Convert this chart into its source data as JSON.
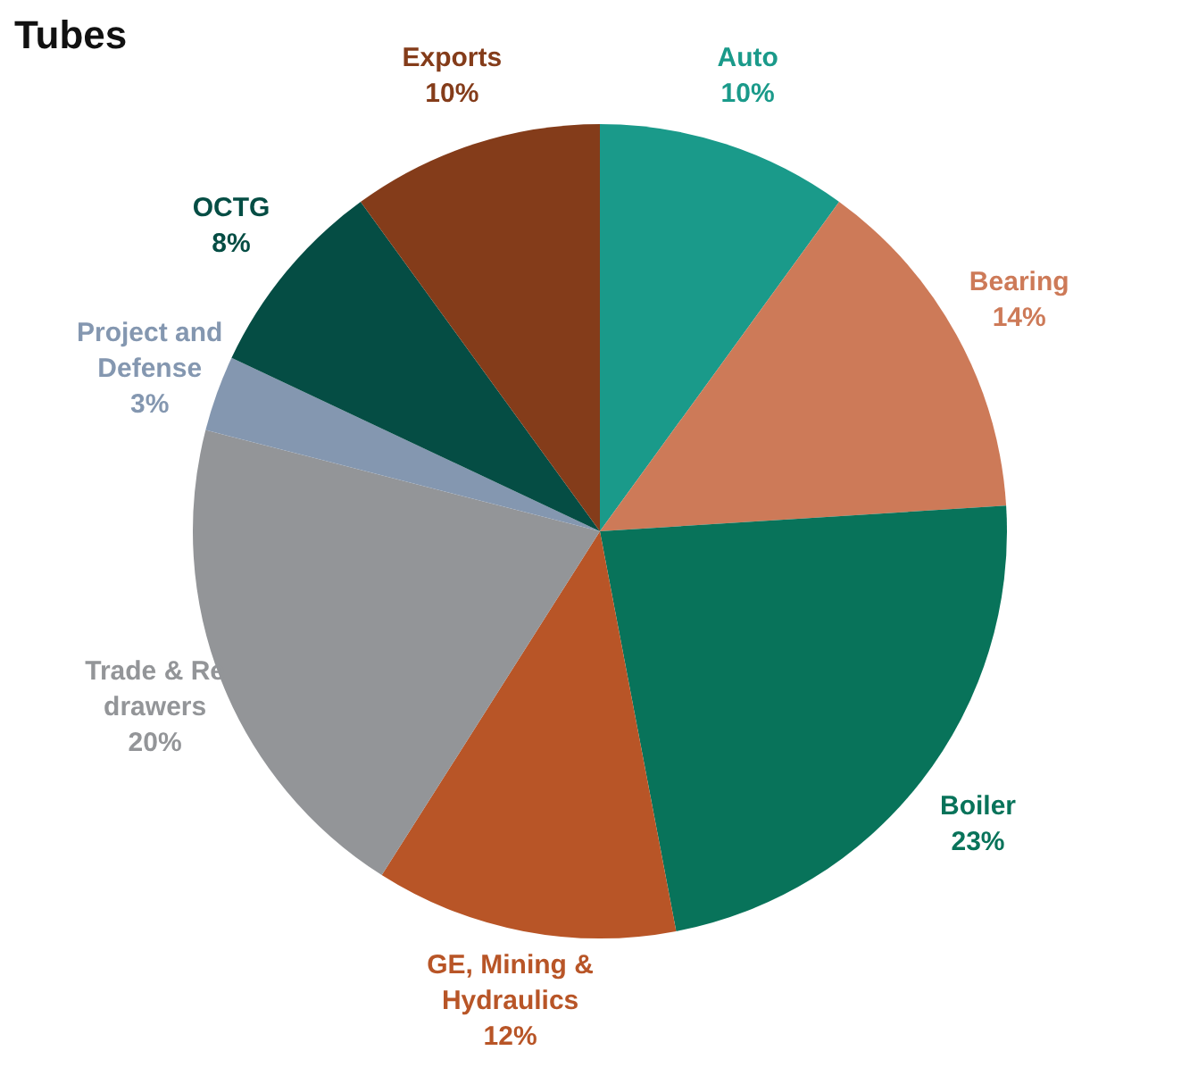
{
  "chart_data": {
    "type": "pie",
    "title": "Tubes",
    "categories": [
      "Auto",
      "Bearing",
      "Boiler",
      "GE, Mining & Hydraulics",
      "Trade & Re drawers",
      "Project and Defense",
      "OCTG",
      "Exports"
    ],
    "values": [
      10,
      14,
      23,
      12,
      20,
      3,
      8,
      10
    ],
    "value_labels": [
      "10%",
      "14%",
      "23%",
      "12%",
      "20%",
      "3%",
      "8%",
      "10%"
    ],
    "colors": [
      "#1a9a8a",
      "#cd7a58",
      "#08735a",
      "#b85527",
      "#939598",
      "#8497b0",
      "#054d44",
      "#843c1a"
    ],
    "legend": false
  }
}
